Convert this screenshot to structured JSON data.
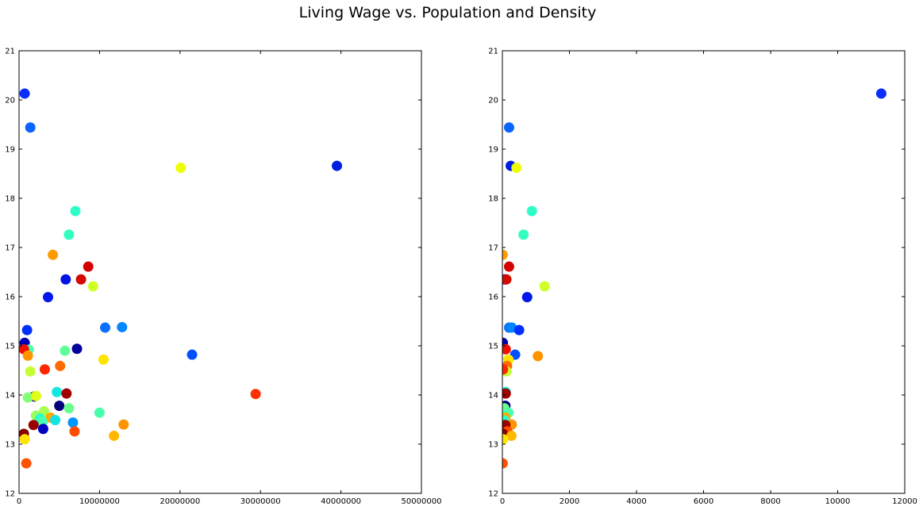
{
  "figure": {
    "title": "Living Wage vs. Population and Density"
  },
  "chart_data": [
    {
      "type": "scatter",
      "title": "",
      "xlabel": "",
      "ylabel": "",
      "xlim": [
        0,
        50000000
      ],
      "ylim": [
        12,
        21
      ],
      "xticks": [
        0,
        10000000,
        20000000,
        30000000,
        40000000,
        50000000
      ],
      "xtick_labels": [
        "0",
        "10000000",
        "20000000",
        "30000000",
        "40000000",
        "50000000"
      ],
      "yticks": [
        12,
        13,
        14,
        15,
        16,
        17,
        18,
        19,
        20,
        21
      ],
      "ytick_labels": [
        "12",
        "13",
        "14",
        "15",
        "16",
        "17",
        "18",
        "19",
        "20",
        "21"
      ],
      "grid": false,
      "points": [
        {
          "x": 700000,
          "y": 20.13,
          "color": "#0a2dff"
        },
        {
          "x": 1400000,
          "y": 19.44,
          "color": "#0a64ff"
        },
        {
          "x": 20100000,
          "y": 18.62,
          "color": "#eeff05"
        },
        {
          "x": 39500000,
          "y": 18.66,
          "color": "#001ee0"
        },
        {
          "x": 7000000,
          "y": 17.74,
          "color": "#2effc8"
        },
        {
          "x": 6200000,
          "y": 17.26,
          "color": "#34ffc0"
        },
        {
          "x": 4200000,
          "y": 16.85,
          "color": "#ff9a00"
        },
        {
          "x": 8600000,
          "y": 16.61,
          "color": "#d40000"
        },
        {
          "x": 5800000,
          "y": 16.35,
          "color": "#0014e8"
        },
        {
          "x": 7700000,
          "y": 16.35,
          "color": "#d20a00"
        },
        {
          "x": 9200000,
          "y": 16.21,
          "color": "#d0ff26"
        },
        {
          "x": 3600000,
          "y": 15.99,
          "color": "#0018ec"
        },
        {
          "x": 1000000,
          "y": 15.32,
          "color": "#0030ff"
        },
        {
          "x": 10700000,
          "y": 15.37,
          "color": "#0c70ff"
        },
        {
          "x": 12800000,
          "y": 15.38,
          "color": "#0086ff"
        },
        {
          "x": 700000,
          "y": 15.06,
          "color": "#0000b2"
        },
        {
          "x": 1200000,
          "y": 14.92,
          "color": "#4dffaa"
        },
        {
          "x": 600000,
          "y": 14.93,
          "color": "#f01000"
        },
        {
          "x": 1100000,
          "y": 14.8,
          "color": "#ff9400"
        },
        {
          "x": 5700000,
          "y": 14.9,
          "color": "#5eff99"
        },
        {
          "x": 7200000,
          "y": 14.94,
          "color": "#00009c"
        },
        {
          "x": 21500000,
          "y": 14.82,
          "color": "#0050ff"
        },
        {
          "x": 10500000,
          "y": 14.72,
          "color": "#ffe400"
        },
        {
          "x": 1400000,
          "y": 14.48,
          "color": "#c4ff33"
        },
        {
          "x": 3200000,
          "y": 14.52,
          "color": "#ff2600"
        },
        {
          "x": 5100000,
          "y": 14.59,
          "color": "#ff6c00"
        },
        {
          "x": 4700000,
          "y": 14.06,
          "color": "#16e6e0"
        },
        {
          "x": 5900000,
          "y": 14.03,
          "color": "#a00000"
        },
        {
          "x": 29400000,
          "y": 14.02,
          "color": "#ff3000"
        },
        {
          "x": 1900000,
          "y": 13.97,
          "color": "#00009e"
        },
        {
          "x": 1100000,
          "y": 13.95,
          "color": "#80ff77"
        },
        {
          "x": 2100000,
          "y": 13.98,
          "color": "#e0ff14"
        },
        {
          "x": 5000000,
          "y": 13.78,
          "color": "#00007a"
        },
        {
          "x": 6200000,
          "y": 13.73,
          "color": "#6aff8c"
        },
        {
          "x": 3100000,
          "y": 13.67,
          "color": "#a8ff50"
        },
        {
          "x": 10000000,
          "y": 13.64,
          "color": "#4affac"
        },
        {
          "x": 2100000,
          "y": 13.58,
          "color": "#9aff5c"
        },
        {
          "x": 3900000,
          "y": 13.54,
          "color": "#ffaa00"
        },
        {
          "x": 2600000,
          "y": 13.52,
          "color": "#2affcc"
        },
        {
          "x": 4500000,
          "y": 13.49,
          "color": "#12e2e6"
        },
        {
          "x": 2900000,
          "y": 13.46,
          "color": "#48ffb0"
        },
        {
          "x": 6700000,
          "y": 13.44,
          "color": "#0096ff"
        },
        {
          "x": 13000000,
          "y": 13.4,
          "color": "#ff9400"
        },
        {
          "x": 1800000,
          "y": 13.39,
          "color": "#9a0000"
        },
        {
          "x": 3000000,
          "y": 13.31,
          "color": "#0000c4"
        },
        {
          "x": 6900000,
          "y": 13.26,
          "color": "#ff4c00"
        },
        {
          "x": 600000,
          "y": 13.21,
          "color": "#860000"
        },
        {
          "x": 11800000,
          "y": 13.17,
          "color": "#ffb800"
        },
        {
          "x": 700000,
          "y": 13.1,
          "color": "#ffe600"
        },
        {
          "x": 900000,
          "y": 12.61,
          "color": "#ff5200"
        }
      ]
    },
    {
      "type": "scatter",
      "title": "",
      "xlabel": "",
      "ylabel": "",
      "xlim": [
        0,
        12000
      ],
      "ylim": [
        12,
        21
      ],
      "xticks": [
        0,
        2000,
        4000,
        6000,
        8000,
        10000,
        12000
      ],
      "xtick_labels": [
        "0",
        "2000",
        "4000",
        "6000",
        "8000",
        "10000",
        "12000"
      ],
      "yticks": [
        12,
        13,
        14,
        15,
        16,
        17,
        18,
        19,
        20,
        21
      ],
      "ytick_labels": [
        "12",
        "13",
        "14",
        "15",
        "16",
        "17",
        "18",
        "19",
        "20",
        "21"
      ],
      "grid": false,
      "points": [
        {
          "x": 11300,
          "y": 20.13,
          "color": "#0a2dff"
        },
        {
          "x": 200,
          "y": 19.44,
          "color": "#0a64ff"
        },
        {
          "x": 250,
          "y": 18.66,
          "color": "#001ee0"
        },
        {
          "x": 420,
          "y": 18.62,
          "color": "#eeff05"
        },
        {
          "x": 880,
          "y": 17.74,
          "color": "#2effc8"
        },
        {
          "x": 630,
          "y": 17.26,
          "color": "#34ffc0"
        },
        {
          "x": 10,
          "y": 16.85,
          "color": "#ff9a00"
        },
        {
          "x": 200,
          "y": 16.61,
          "color": "#d40000"
        },
        {
          "x": 70,
          "y": 16.35,
          "color": "#0014e8"
        },
        {
          "x": 120,
          "y": 16.35,
          "color": "#d20a00"
        },
        {
          "x": 1260,
          "y": 16.21,
          "color": "#d0ff26"
        },
        {
          "x": 740,
          "y": 15.99,
          "color": "#0018ec"
        },
        {
          "x": 200,
          "y": 15.37,
          "color": "#0c70ff"
        },
        {
          "x": 280,
          "y": 15.37,
          "color": "#0086ff"
        },
        {
          "x": 500,
          "y": 15.32,
          "color": "#0030ff"
        },
        {
          "x": 15,
          "y": 15.06,
          "color": "#0000b2"
        },
        {
          "x": 100,
          "y": 14.93,
          "color": "#f01000"
        },
        {
          "x": 380,
          "y": 14.82,
          "color": "#0050ff"
        },
        {
          "x": 1060,
          "y": 14.79,
          "color": "#ff9400"
        },
        {
          "x": 180,
          "y": 14.72,
          "color": "#ffe400"
        },
        {
          "x": 140,
          "y": 14.59,
          "color": "#ff6c00"
        },
        {
          "x": 120,
          "y": 14.48,
          "color": "#c4ff33"
        },
        {
          "x": 20,
          "y": 14.52,
          "color": "#ff2600"
        },
        {
          "x": 100,
          "y": 14.06,
          "color": "#16e6e0"
        },
        {
          "x": 100,
          "y": 14.03,
          "color": "#a00000"
        },
        {
          "x": 90,
          "y": 13.78,
          "color": "#00007a"
        },
        {
          "x": 60,
          "y": 13.73,
          "color": "#6aff8c"
        },
        {
          "x": 180,
          "y": 13.64,
          "color": "#4affac"
        },
        {
          "x": 90,
          "y": 13.54,
          "color": "#ffaa00"
        },
        {
          "x": 60,
          "y": 13.48,
          "color": "#2affcc"
        },
        {
          "x": 280,
          "y": 13.4,
          "color": "#ff9400"
        },
        {
          "x": 90,
          "y": 13.39,
          "color": "#9a0000"
        },
        {
          "x": 150,
          "y": 13.26,
          "color": "#ff4c00"
        },
        {
          "x": 20,
          "y": 13.21,
          "color": "#860000"
        },
        {
          "x": 270,
          "y": 13.17,
          "color": "#ffb800"
        },
        {
          "x": 20,
          "y": 13.1,
          "color": "#ffe600"
        },
        {
          "x": 10,
          "y": 12.61,
          "color": "#ff5200"
        }
      ]
    }
  ]
}
